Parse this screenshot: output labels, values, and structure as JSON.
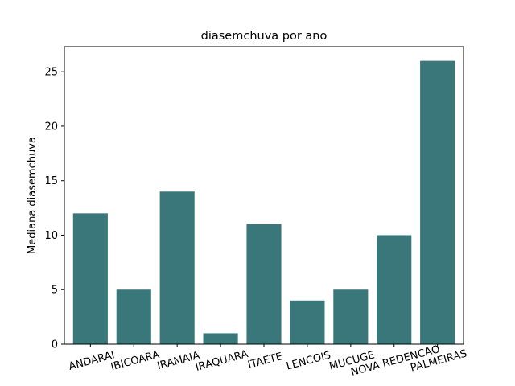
{
  "chart_data": {
    "type": "bar",
    "title": "diasemchuva por ano",
    "xlabel": "",
    "ylabel": "Mediana diasemchuva",
    "categories": [
      "ANDARAI",
      "IBICOARA",
      "IRAMAIA",
      "IRAQUARA",
      "ITAETE",
      "LENCOIS",
      "MUCUGE",
      "NOVA REDENCAO",
      "PALMEIRAS"
    ],
    "values": [
      12,
      5,
      14,
      1,
      11,
      4,
      5,
      10,
      26
    ],
    "yticks": [
      0,
      5,
      10,
      15,
      20,
      25
    ],
    "ylim": [
      0,
      27.3
    ],
    "bar_color": "#3a777b",
    "grid": false,
    "legend": "none"
  }
}
